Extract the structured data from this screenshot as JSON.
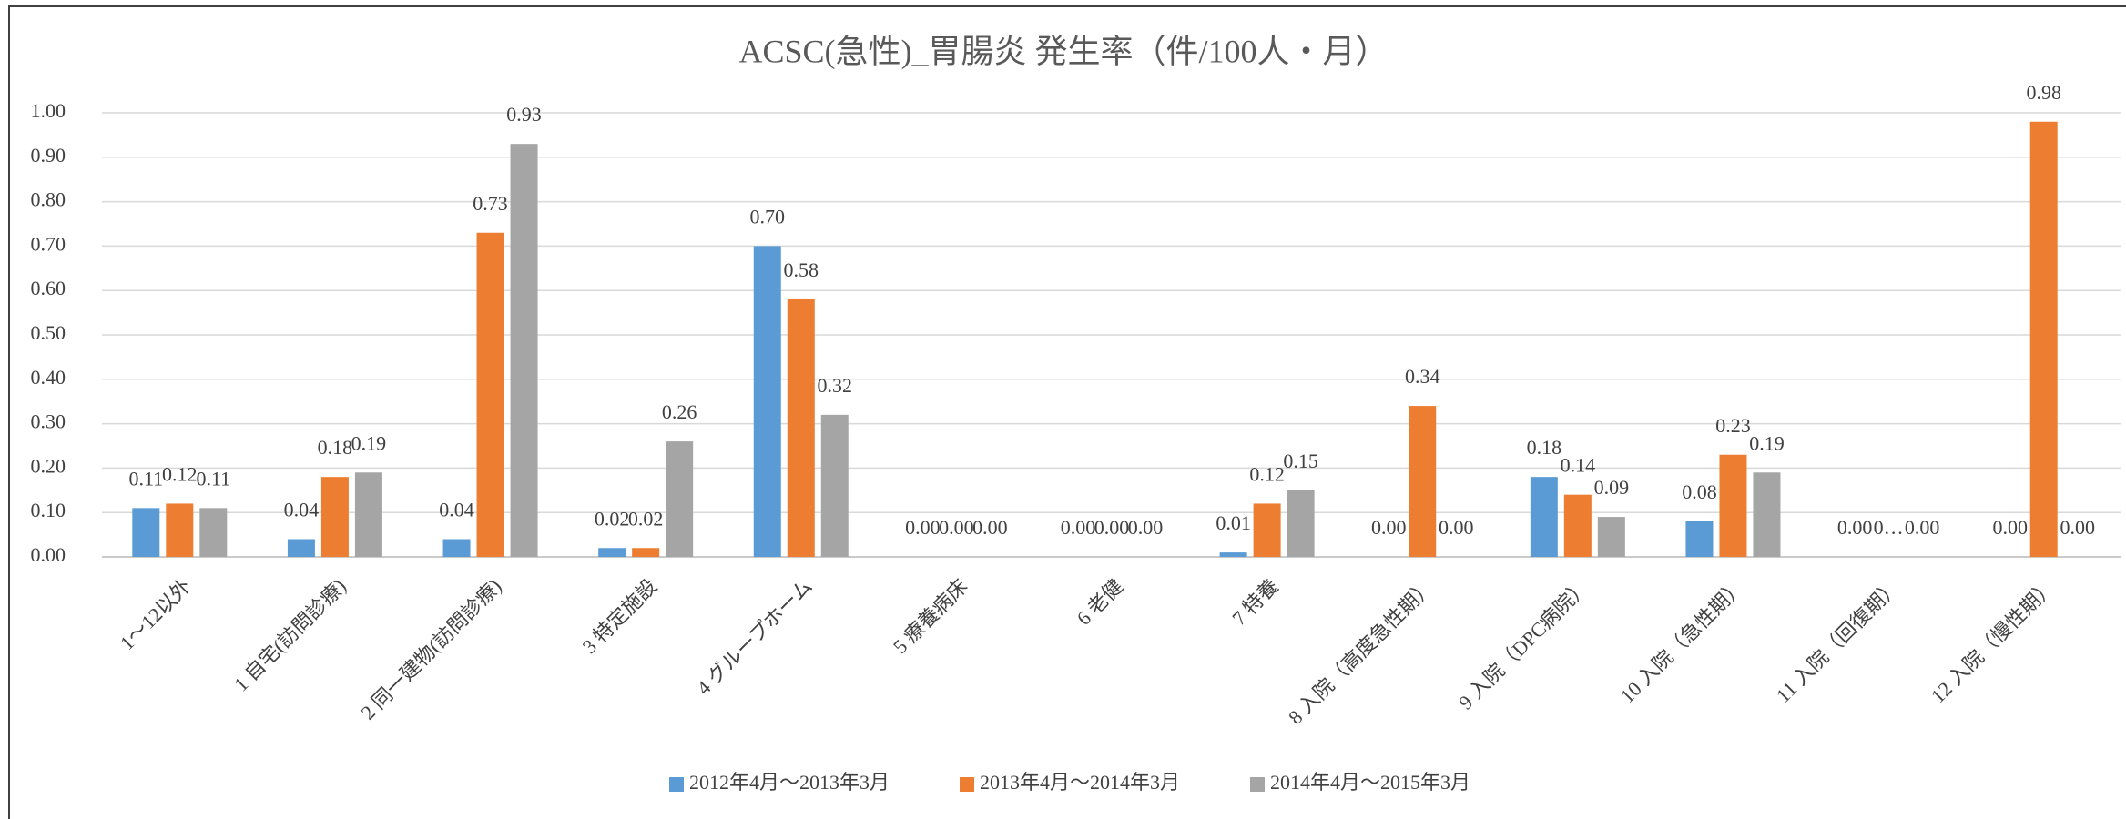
{
  "chart_data": {
    "type": "bar",
    "title": "ACSC(急性)_胃腸炎 発生率（件/100人・月）",
    "categories": [
      "1～12以外",
      "1 自宅(訪問診療)",
      "2 同一建物(訪問診療)",
      "3 特定施設",
      "4 グループホーム",
      "5 療養病床",
      "6 老健",
      "7 特養",
      "8 入院（高度急性期）",
      "9 入院（DPC病院）",
      "10 入院（急性期）",
      "11 入院（回復期）",
      "12 入院（慢性期）"
    ],
    "series": [
      {
        "name": "2012年4月～2013年3月",
        "color": "#5b9bd5",
        "values": [
          0.11,
          0.04,
          0.04,
          0.02,
          0.7,
          0.0,
          0.0,
          0.01,
          0.0,
          0.18,
          0.08,
          0.0,
          0.0
        ],
        "value_labels": [
          "0.11",
          "0.04",
          "0.04",
          "0.02",
          "0.70",
          "0.00",
          "0.00",
          "0.01",
          "0.00",
          "0.18",
          "0.08",
          "0.00",
          "0.00"
        ]
      },
      {
        "name": "2013年4月～2014年3月",
        "color": "#ed7d31",
        "values": [
          0.12,
          0.18,
          0.73,
          0.02,
          0.58,
          0.0,
          0.0,
          0.12,
          0.34,
          0.14,
          0.23,
          0.0,
          0.98
        ],
        "value_labels": [
          "0.12",
          "0.18",
          "0.73",
          "0.02",
          "0.58",
          "0.00",
          "0.00",
          "0.12",
          "0.34",
          "0.14",
          "0.23",
          "0…",
          "0.98"
        ]
      },
      {
        "name": "2014年4月～2015年3月",
        "color": "#a5a5a5",
        "values": [
          0.11,
          0.19,
          0.93,
          0.26,
          0.32,
          0.0,
          0.0,
          0.15,
          0.0,
          0.09,
          0.19,
          0.0,
          0.0
        ],
        "value_labels": [
          "0.11",
          "0.19",
          "0.93",
          "0.26",
          "0.32",
          "0.00",
          "0.00",
          "0.15",
          "0.00",
          "0.09",
          "0.19",
          "0.00",
          "0.00"
        ]
      }
    ],
    "ylim": [
      0,
      1
    ],
    "yticks": [
      {
        "value": 0,
        "label": "0.00"
      },
      {
        "value": 0.1,
        "label": "0.10"
      },
      {
        "value": 0.2,
        "label": "0.20"
      },
      {
        "value": 0.3,
        "label": "0.30"
      },
      {
        "value": 0.4,
        "label": "0.40"
      },
      {
        "value": 0.5,
        "label": "0.50"
      },
      {
        "value": 0.6,
        "label": "0.60"
      },
      {
        "value": 0.7,
        "label": "0.70"
      },
      {
        "value": 0.8,
        "label": "0.80"
      },
      {
        "value": 0.9,
        "label": "0.90"
      },
      {
        "value": 1,
        "label": "1.00"
      }
    ],
    "grid": true,
    "legend": "bottom"
  }
}
